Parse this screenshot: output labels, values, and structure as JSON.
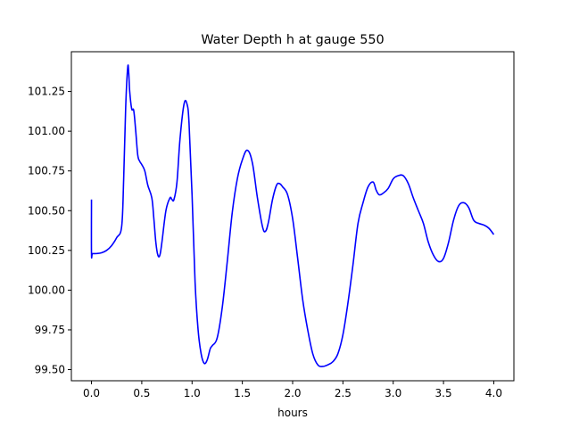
{
  "chart_data": {
    "type": "line",
    "title": "Water Depth h at gauge 550",
    "xlabel": "hours",
    "ylabel": "",
    "xlim": [
      -0.2,
      4.2
    ],
    "ylim": [
      99.43,
      101.5
    ],
    "x_ticks": [
      0.0,
      0.5,
      1.0,
      1.5,
      2.0,
      2.5,
      3.0,
      3.5,
      4.0
    ],
    "x_tick_labels": [
      "0.0",
      "0.5",
      "1.0",
      "1.5",
      "2.0",
      "2.5",
      "3.0",
      "3.5",
      "4.0"
    ],
    "y_ticks": [
      99.5,
      99.75,
      100.0,
      100.25,
      100.5,
      100.75,
      101.0,
      101.25
    ],
    "y_tick_labels": [
      "99.50",
      "99.75",
      "100.00",
      "100.25",
      "100.50",
      "100.75",
      "101.00",
      "101.25"
    ],
    "grid": false,
    "series": [
      {
        "color": "#0000ff",
        "x": [
          0.0,
          0.0,
          0.01,
          0.05,
          0.1,
          0.15,
          0.2,
          0.25,
          0.3,
          0.32,
          0.34,
          0.36,
          0.37,
          0.38,
          0.4,
          0.42,
          0.44,
          0.46,
          0.48,
          0.5,
          0.53,
          0.56,
          0.6,
          0.62,
          0.64,
          0.66,
          0.68,
          0.7,
          0.74,
          0.78,
          0.8,
          0.82,
          0.85,
          0.88,
          0.92,
          0.95,
          0.97,
          1.0,
          1.03,
          1.06,
          1.09,
          1.12,
          1.15,
          1.18,
          1.2,
          1.25,
          1.3,
          1.35,
          1.4,
          1.45,
          1.5,
          1.55,
          1.6,
          1.65,
          1.7,
          1.73,
          1.76,
          1.8,
          1.84,
          1.87,
          1.9,
          1.95,
          2.0,
          2.05,
          2.1,
          2.15,
          2.2,
          2.25,
          2.3,
          2.35,
          2.4,
          2.45,
          2.5,
          2.55,
          2.6,
          2.65,
          2.7,
          2.75,
          2.8,
          2.83,
          2.86,
          2.9,
          2.95,
          3.0,
          3.05,
          3.1,
          3.15,
          3.2,
          3.25,
          3.3,
          3.35,
          3.4,
          3.45,
          3.5,
          3.55,
          3.6,
          3.65,
          3.7,
          3.75,
          3.8,
          3.85,
          3.9,
          3.95,
          4.0
        ],
        "y": [
          100.57,
          100.23,
          100.23,
          100.23,
          100.235,
          100.25,
          100.28,
          100.33,
          100.4,
          100.7,
          101.15,
          101.4,
          101.37,
          101.25,
          101.14,
          101.13,
          101.0,
          100.85,
          100.81,
          100.79,
          100.75,
          100.66,
          100.58,
          100.45,
          100.3,
          100.22,
          100.22,
          100.3,
          100.5,
          100.58,
          100.57,
          100.57,
          100.68,
          100.95,
          101.17,
          101.17,
          101.05,
          100.6,
          100.05,
          99.75,
          99.6,
          99.54,
          99.56,
          99.63,
          99.65,
          99.7,
          99.89,
          100.18,
          100.49,
          100.7,
          100.82,
          100.88,
          100.8,
          100.58,
          100.4,
          100.37,
          100.43,
          100.57,
          100.66,
          100.67,
          100.65,
          100.6,
          100.45,
          100.2,
          99.94,
          99.75,
          99.6,
          99.53,
          99.52,
          99.53,
          99.55,
          99.6,
          99.72,
          99.92,
          100.16,
          100.42,
          100.55,
          100.65,
          100.68,
          100.63,
          100.6,
          100.61,
          100.64,
          100.7,
          100.72,
          100.72,
          100.67,
          100.58,
          100.5,
          100.42,
          100.3,
          100.22,
          100.18,
          100.2,
          100.3,
          100.44,
          100.53,
          100.55,
          100.52,
          100.44,
          100.42,
          100.41,
          100.39,
          100.35
        ]
      }
    ]
  }
}
